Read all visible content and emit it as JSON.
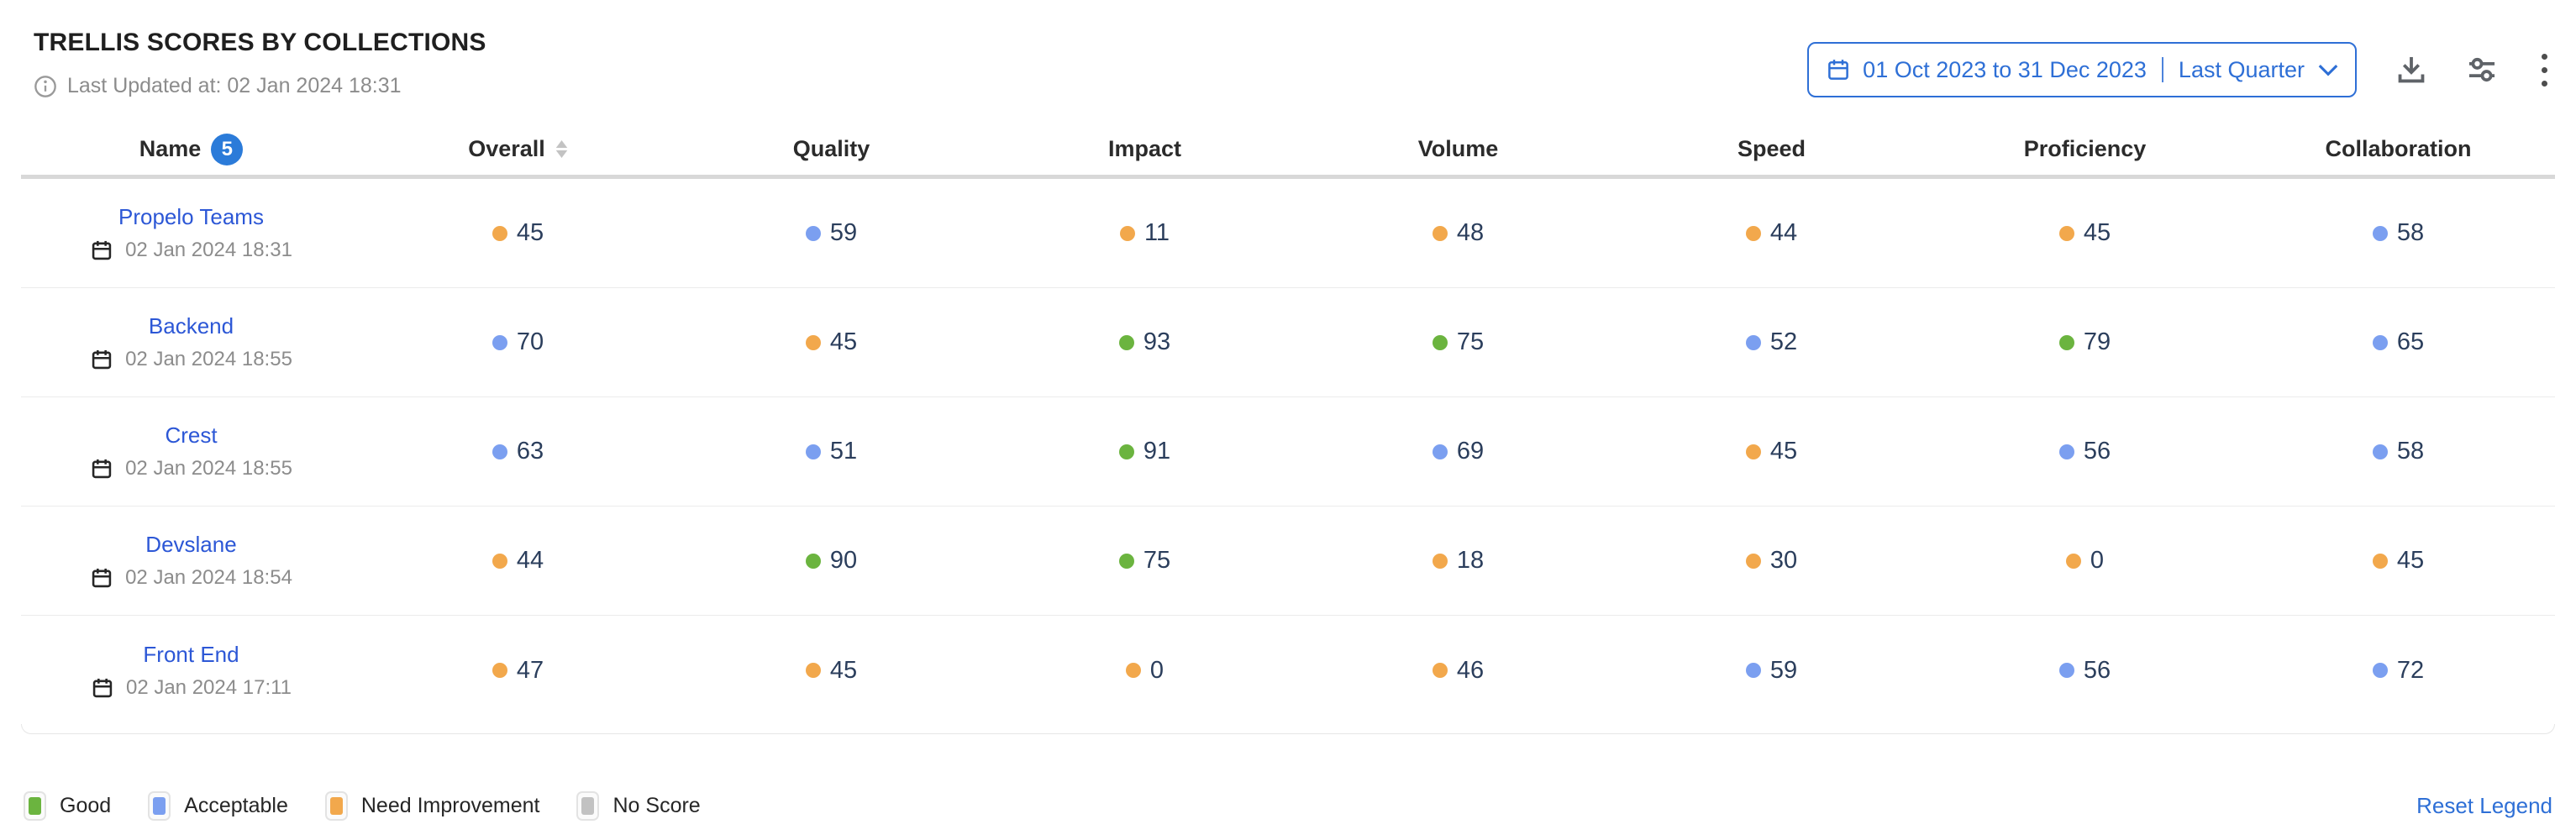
{
  "header": {
    "title": "TRELLIS SCORES BY COLLECTIONS",
    "last_updated": "Last Updated at: 02 Jan 2024 18:31",
    "date_picker": {
      "range": "01 Oct 2023 to 31 Dec 2023",
      "preset": "Last Quarter"
    },
    "icons": [
      "calendar-icon",
      "chevron-down-icon",
      "download-icon",
      "sliders-icon",
      "kebab-menu-icon"
    ]
  },
  "table": {
    "columns": [
      "Name",
      "Overall",
      "Quality",
      "Impact",
      "Volume",
      "Speed",
      "Proficiency",
      "Collaboration"
    ],
    "name_badge_count": "5",
    "rows": [
      {
        "name": "Propelo Teams",
        "timestamp": "02 Jan 2024 18:31",
        "scores": [
          {
            "value": "45",
            "status": "need_improvement"
          },
          {
            "value": "59",
            "status": "acceptable"
          },
          {
            "value": "11",
            "status": "need_improvement"
          },
          {
            "value": "48",
            "status": "need_improvement"
          },
          {
            "value": "44",
            "status": "need_improvement"
          },
          {
            "value": "45",
            "status": "need_improvement"
          },
          {
            "value": "58",
            "status": "acceptable"
          }
        ]
      },
      {
        "name": "Backend",
        "timestamp": "02 Jan 2024 18:55",
        "scores": [
          {
            "value": "70",
            "status": "acceptable"
          },
          {
            "value": "45",
            "status": "need_improvement"
          },
          {
            "value": "93",
            "status": "good"
          },
          {
            "value": "75",
            "status": "good"
          },
          {
            "value": "52",
            "status": "acceptable"
          },
          {
            "value": "79",
            "status": "good"
          },
          {
            "value": "65",
            "status": "acceptable"
          }
        ]
      },
      {
        "name": "Crest",
        "timestamp": "02 Jan 2024 18:55",
        "scores": [
          {
            "value": "63",
            "status": "acceptable"
          },
          {
            "value": "51",
            "status": "acceptable"
          },
          {
            "value": "91",
            "status": "good"
          },
          {
            "value": "69",
            "status": "acceptable"
          },
          {
            "value": "45",
            "status": "need_improvement"
          },
          {
            "value": "56",
            "status": "acceptable"
          },
          {
            "value": "58",
            "status": "acceptable"
          }
        ]
      },
      {
        "name": "Devslane",
        "timestamp": "02 Jan 2024 18:54",
        "scores": [
          {
            "value": "44",
            "status": "need_improvement"
          },
          {
            "value": "90",
            "status": "good"
          },
          {
            "value": "75",
            "status": "good"
          },
          {
            "value": "18",
            "status": "need_improvement"
          },
          {
            "value": "30",
            "status": "need_improvement"
          },
          {
            "value": "0",
            "status": "need_improvement"
          },
          {
            "value": "45",
            "status": "need_improvement"
          }
        ]
      },
      {
        "name": "Front End",
        "timestamp": "02 Jan 2024 17:11",
        "scores": [
          {
            "value": "47",
            "status": "need_improvement"
          },
          {
            "value": "45",
            "status": "need_improvement"
          },
          {
            "value": "0",
            "status": "need_improvement"
          },
          {
            "value": "46",
            "status": "need_improvement"
          },
          {
            "value": "59",
            "status": "acceptable"
          },
          {
            "value": "56",
            "status": "acceptable"
          },
          {
            "value": "72",
            "status": "acceptable"
          }
        ]
      }
    ]
  },
  "legend": {
    "items": [
      {
        "label": "Good",
        "status": "good"
      },
      {
        "label": "Acceptable",
        "status": "acceptable"
      },
      {
        "label": "Need Improvement",
        "status": "need_improvement"
      },
      {
        "label": "No Score",
        "status": "no_score"
      }
    ],
    "reset_label": "Reset Legend"
  },
  "colors": {
    "good": "#6bb43f",
    "acceptable": "#7b9ff0",
    "need_improvement": "#f2a84c",
    "no_score": "#c2c2c2",
    "accent_blue": "#2e6fd6",
    "link_blue": "#2c57d6",
    "score_text": "#2b3e5c"
  }
}
